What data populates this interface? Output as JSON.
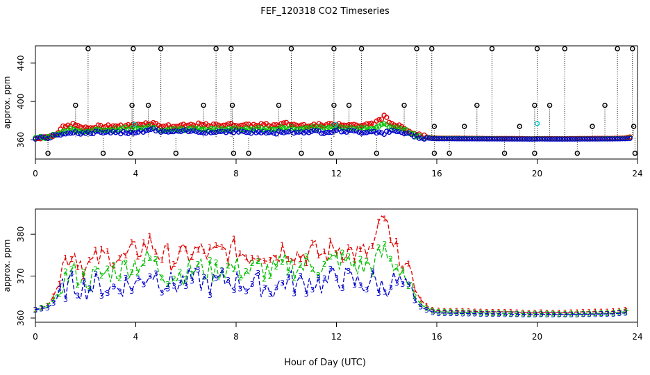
{
  "title": "FEF_120318  CO2 Timeseries",
  "xlabel": "Hour of Day (UTC)",
  "colors": {
    "s1": "#e00000",
    "s2": "#00c000",
    "s3": "#0000cc",
    "s4": "#00cccc",
    "outlier": "#000000"
  },
  "chart_data": [
    {
      "type": "scatter",
      "ylabel": "approx. ppm",
      "xlim": [
        0,
        24
      ],
      "ylim": [
        340,
        458
      ],
      "x_ticks": [
        0,
        4,
        8,
        12,
        16,
        20,
        24
      ],
      "y_ticks": [
        360,
        400,
        440
      ],
      "outliers": {
        "high_x": [
          2.1,
          3.9,
          5.0,
          7.2,
          7.8,
          10.2,
          11.9,
          13.0,
          15.2,
          15.8,
          18.2,
          20.0,
          21.1,
          23.2,
          23.8
        ],
        "high_y": 455,
        "mid_x": [
          1.6,
          3.85,
          4.5,
          6.7,
          7.85,
          9.7,
          11.9,
          12.5,
          14.7,
          15.9,
          17.1,
          17.6,
          19.3,
          19.9,
          20.5,
          22.2,
          22.7,
          23.85
        ],
        "mid_y": [
          396,
          396,
          396,
          396,
          396,
          396,
          396,
          396,
          396,
          374,
          374,
          396,
          374,
          396,
          396,
          374,
          396,
          374
        ],
        "low_x": [
          0.5,
          2.7,
          3.8,
          5.6,
          7.9,
          8.5,
          10.6,
          11.8,
          13.6,
          15.9,
          16.5,
          18.7,
          19.9,
          21.6,
          23.9
        ],
        "low_y": 346
      }
    },
    {
      "type": "line",
      "ylabel": "approx. ppm",
      "xlim": [
        0,
        24
      ],
      "ylim": [
        359,
        386
      ],
      "x_ticks": [
        0,
        4,
        8,
        12,
        16,
        20,
        24
      ],
      "y_ticks": [
        360,
        370,
        380
      ],
      "series": [
        {
          "name": "1",
          "points": [
            [
              0,
              362
            ],
            [
              0.5,
              363
            ],
            [
              0.8,
              366
            ],
            [
              1.1,
              373
            ],
            [
              1.5,
              376
            ],
            [
              2.0,
              372
            ],
            [
              2.5,
              374
            ],
            [
              3.0,
              375
            ],
            [
              3.5,
              374
            ],
            [
              4.0,
              376
            ],
            [
              4.6,
              378
            ],
            [
              5.0,
              375
            ],
            [
              5.5,
              374
            ],
            [
              6.0,
              375
            ],
            [
              6.5,
              376
            ],
            [
              7.0,
              375
            ],
            [
              7.5,
              376
            ],
            [
              8.0,
              376
            ],
            [
              8.5,
              375
            ],
            [
              9.0,
              376
            ],
            [
              9.5,
              375
            ],
            [
              10.0,
              377
            ],
            [
              10.5,
              375
            ],
            [
              11.0,
              376
            ],
            [
              11.5,
              375
            ],
            [
              12.0,
              377
            ],
            [
              12.5,
              376
            ],
            [
              13.0,
              375
            ],
            [
              13.5,
              377
            ],
            [
              13.9,
              385
            ],
            [
              14.2,
              376
            ],
            [
              14.6,
              375
            ],
            [
              15.0,
              368
            ],
            [
              15.4,
              364
            ],
            [
              15.8,
              362
            ],
            [
              16.0,
              361.8
            ],
            [
              17.0,
              361.7
            ],
            [
              18.0,
              361.5
            ],
            [
              19.0,
              361.5
            ],
            [
              19.8,
              361.2
            ],
            [
              20.0,
              361.4
            ],
            [
              21.0,
              361.3
            ],
            [
              22.0,
              361.5
            ],
            [
              23.0,
              361.6
            ],
            [
              23.5,
              361.9
            ],
            [
              23.7,
              363
            ]
          ]
        },
        {
          "name": "2",
          "points": [
            [
              0,
              362
            ],
            [
              0.5,
              363
            ],
            [
              0.8,
              365
            ],
            [
              1.1,
              369
            ],
            [
              1.5,
              371
            ],
            [
              2.0,
              369
            ],
            [
              2.5,
              370
            ],
            [
              3.0,
              371
            ],
            [
              3.5,
              372
            ],
            [
              4.0,
              373
            ],
            [
              4.6,
              374
            ],
            [
              5.0,
              371
            ],
            [
              5.5,
              370
            ],
            [
              6.0,
              371
            ],
            [
              6.5,
              372
            ],
            [
              7.0,
              371
            ],
            [
              7.5,
              372
            ],
            [
              8.0,
              372
            ],
            [
              8.5,
              371
            ],
            [
              9.0,
              372
            ],
            [
              9.5,
              371
            ],
            [
              10.0,
              373
            ],
            [
              10.5,
              372
            ],
            [
              11.0,
              373
            ],
            [
              11.5,
              372
            ],
            [
              12.0,
              374
            ],
            [
              12.5,
              373
            ],
            [
              13.0,
              372
            ],
            [
              13.5,
              373
            ],
            [
              13.9,
              376
            ],
            [
              14.2,
              373
            ],
            [
              14.6,
              372
            ],
            [
              15.0,
              366
            ],
            [
              15.4,
              363
            ],
            [
              15.8,
              361.8
            ],
            [
              16.0,
              361.5
            ],
            [
              17.0,
              361.4
            ],
            [
              18.0,
              361.2
            ],
            [
              19.0,
              361.1
            ],
            [
              19.8,
              361.0
            ],
            [
              20.0,
              361.1
            ],
            [
              21.0,
              361.0
            ],
            [
              22.0,
              361.1
            ],
            [
              23.0,
              361.2
            ],
            [
              23.5,
              361.5
            ],
            [
              23.7,
              362
            ]
          ]
        },
        {
          "name": "3",
          "points": [
            [
              0,
              362
            ],
            [
              0.5,
              362.5
            ],
            [
              0.8,
              364
            ],
            [
              1.1,
              367
            ],
            [
              1.5,
              368
            ],
            [
              2.0,
              367
            ],
            [
              2.5,
              368
            ],
            [
              3.0,
              367
            ],
            [
              3.5,
              368
            ],
            [
              4.0,
              368
            ],
            [
              4.6,
              371
            ],
            [
              5.0,
              369
            ],
            [
              5.5,
              368
            ],
            [
              6.0,
              369
            ],
            [
              6.5,
              369
            ],
            [
              7.0,
              368
            ],
            [
              7.5,
              369
            ],
            [
              8.0,
              369
            ],
            [
              8.5,
              368
            ],
            [
              9.0,
              368
            ],
            [
              9.5,
              367
            ],
            [
              10.0,
              369
            ],
            [
              10.5,
              368
            ],
            [
              11.0,
              369
            ],
            [
              11.5,
              368
            ],
            [
              12.0,
              370
            ],
            [
              12.5,
              369
            ],
            [
              13.0,
              368
            ],
            [
              13.5,
              369
            ],
            [
              13.9,
              367
            ],
            [
              14.2,
              369
            ],
            [
              14.6,
              368
            ],
            [
              15.0,
              365
            ],
            [
              15.4,
              362.5
            ],
            [
              15.8,
              361.5
            ],
            [
              16.0,
              361.2
            ],
            [
              17.0,
              361.1
            ],
            [
              18.0,
              361.0
            ],
            [
              19.0,
              360.9
            ],
            [
              19.8,
              360.8
            ],
            [
              20.0,
              360.9
            ],
            [
              21.0,
              360.8
            ],
            [
              22.0,
              360.9
            ],
            [
              23.0,
              361.0
            ],
            [
              23.5,
              361.2
            ],
            [
              23.7,
              361.5
            ]
          ]
        }
      ]
    }
  ]
}
